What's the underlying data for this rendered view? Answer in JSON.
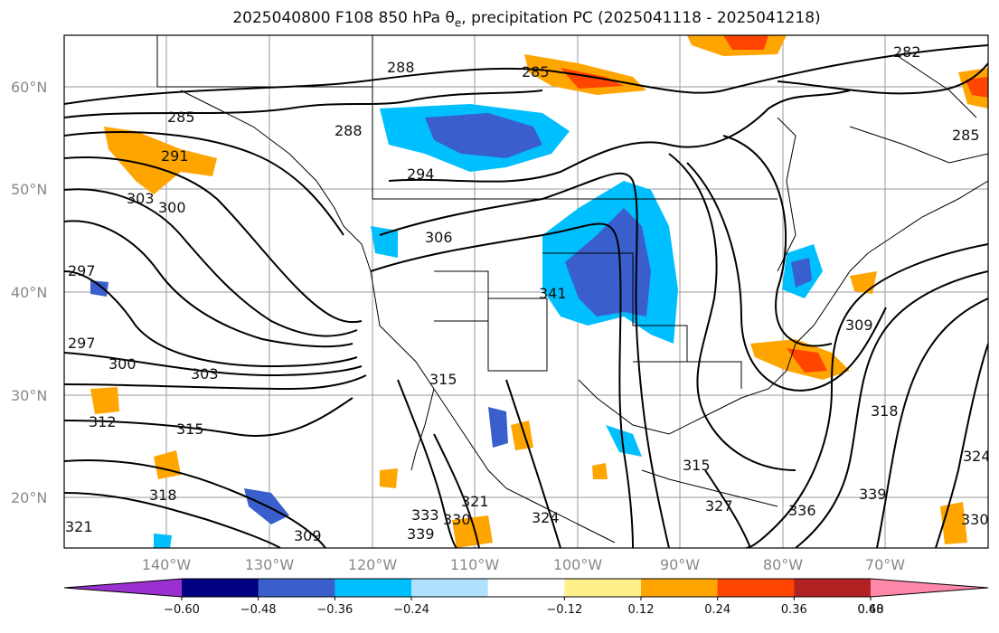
{
  "title": {
    "main": "2025040800 F108 850 hPa θ",
    "sub": "e",
    "rest": ", precipitation PC (2025041118 - 2025041218)"
  },
  "map": {
    "lat_labels": [
      "60°N",
      "50°N",
      "40°N",
      "30°N",
      "20°N"
    ],
    "lon_labels": [
      "140°W",
      "130°W",
      "120°W",
      "110°W",
      "100°W",
      "90°W",
      "80°W",
      "70°W"
    ],
    "contour_labels": [
      "282",
      "285",
      "285",
      "285",
      "288",
      "288",
      "291",
      "294",
      "297",
      "297",
      "300",
      "300",
      "303",
      "303",
      "306",
      "309",
      "309",
      "312",
      "315",
      "315",
      "315",
      "318",
      "318",
      "321",
      "321",
      "324",
      "324",
      "327",
      "330",
      "330",
      "333",
      "336",
      "339",
      "339",
      "341"
    ]
  },
  "colorbar": {
    "ticks": [
      "−0.60",
      "−0.48",
      "−0.36",
      "−0.24",
      "−0.12",
      "0.12",
      "0.24",
      "0.36",
      "0.48",
      "0.60"
    ],
    "colors": [
      "#9b30d0",
      "#000080",
      "#3a5fcd",
      "#00bfff",
      "#b0e2ff",
      "#ffffff",
      "#fff08c",
      "#ffa500",
      "#ff4500",
      "#b22222",
      "#ff88aa"
    ]
  }
}
